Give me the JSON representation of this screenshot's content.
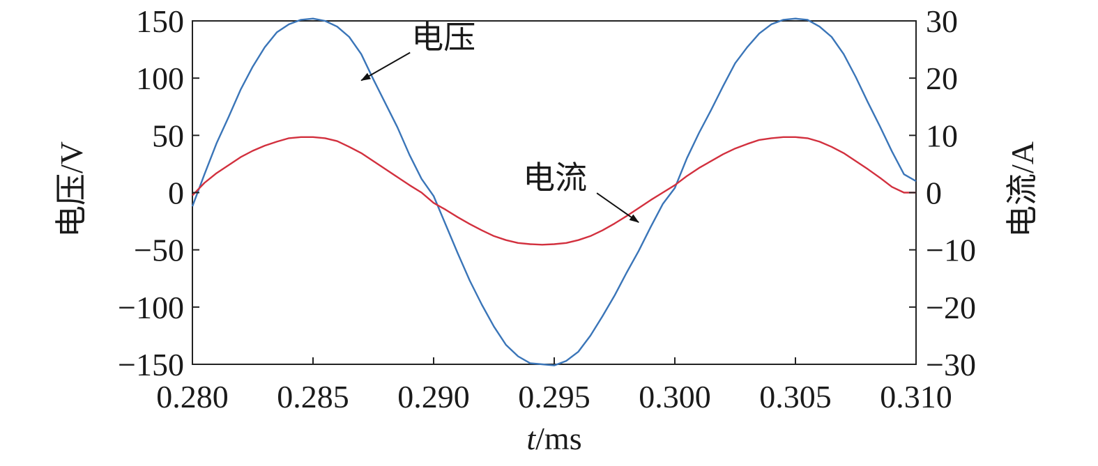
{
  "chart_data": {
    "type": "line",
    "x_axis": {
      "label_italic": "t",
      "label_rest": "/ms",
      "range": [
        0.28,
        0.31
      ],
      "ticks": [
        0.28,
        0.285,
        0.29,
        0.295,
        0.3,
        0.305,
        0.31
      ],
      "tick_labels": [
        "0.280",
        "0.285",
        "0.290",
        "0.295",
        "0.300",
        "0.305",
        "0.310"
      ]
    },
    "y_left": {
      "label": "电压/V",
      "range": [
        -150,
        150
      ],
      "ticks": [
        150,
        100,
        50,
        0,
        -50,
        -100,
        -150
      ],
      "tick_labels": [
        "150",
        "100",
        "50",
        "0",
        "−50",
        "−100",
        "−150"
      ]
    },
    "y_right": {
      "label": "电流/A",
      "range": [
        -30,
        30
      ],
      "ticks": [
        30,
        20,
        10,
        0,
        -10,
        -20,
        -30
      ],
      "tick_labels": [
        "30",
        "20",
        "10",
        "0",
        "−10",
        "−20",
        "−30"
      ]
    },
    "grid": false,
    "series": [
      {
        "name": "电压",
        "axis": "left",
        "color": "#3a75b8",
        "x": [
          0.28,
          0.2805,
          0.281,
          0.2815,
          0.282,
          0.2825,
          0.283,
          0.2835,
          0.284,
          0.2845,
          0.285,
          0.2855,
          0.286,
          0.2865,
          0.287,
          0.2875,
          0.288,
          0.2885,
          0.289,
          0.2895,
          0.29,
          0.2905,
          0.291,
          0.2915,
          0.292,
          0.2925,
          0.293,
          0.2935,
          0.294,
          0.2945,
          0.295,
          0.2955,
          0.296,
          0.2965,
          0.297,
          0.2975,
          0.298,
          0.2985,
          0.299,
          0.2995,
          0.3,
          0.3005,
          0.301,
          0.3015,
          0.302,
          0.3025,
          0.303,
          0.3035,
          0.304,
          0.3045,
          0.305,
          0.3055,
          0.306,
          0.3065,
          0.307,
          0.3075,
          0.308,
          0.3085,
          0.309,
          0.3095,
          0.31
        ],
        "values": [
          -12,
          16,
          43,
          66,
          90,
          110,
          127,
          140,
          147,
          151,
          152,
          150,
          145,
          136,
          121,
          99,
          78,
          57,
          33,
          12,
          -3,
          -28,
          -53,
          -77,
          -98,
          -117,
          -133,
          -143,
          -149,
          -150,
          -151,
          -147,
          -139,
          -125,
          -108,
          -90,
          -70,
          -51,
          -30,
          -10,
          4,
          30,
          52,
          72,
          93,
          113,
          127,
          139,
          147,
          151,
          152,
          151,
          145,
          136,
          121,
          101,
          79,
          58,
          36,
          16,
          10
        ]
      },
      {
        "name": "电流",
        "axis": "right",
        "color": "#d2303e",
        "x": [
          0.28,
          0.2805,
          0.281,
          0.2815,
          0.282,
          0.2825,
          0.283,
          0.2835,
          0.284,
          0.2845,
          0.285,
          0.2855,
          0.286,
          0.2865,
          0.287,
          0.2875,
          0.288,
          0.2885,
          0.289,
          0.2895,
          0.29,
          0.2905,
          0.291,
          0.2915,
          0.292,
          0.2925,
          0.293,
          0.2935,
          0.294,
          0.2945,
          0.295,
          0.2955,
          0.296,
          0.2965,
          0.297,
          0.2975,
          0.298,
          0.2985,
          0.299,
          0.2995,
          0.3,
          0.3005,
          0.301,
          0.3015,
          0.302,
          0.3025,
          0.303,
          0.3035,
          0.304,
          0.3045,
          0.305,
          0.3055,
          0.306,
          0.3065,
          0.307,
          0.3075,
          0.308,
          0.3085,
          0.309,
          0.3095,
          0.31
        ],
        "values": [
          -0.5,
          1.7,
          3.4,
          4.8,
          6.2,
          7.3,
          8.2,
          8.9,
          9.5,
          9.7,
          9.7,
          9.5,
          9.0,
          8.0,
          6.9,
          5.5,
          4.1,
          2.7,
          1.3,
          -0.0,
          -1.8,
          -3.0,
          -4.3,
          -5.5,
          -6.6,
          -7.6,
          -8.3,
          -8.8,
          -9.0,
          -9.1,
          -9.0,
          -8.8,
          -8.3,
          -7.6,
          -6.6,
          -5.4,
          -4.1,
          -2.7,
          -1.3,
          0.0,
          1.3,
          2.9,
          4.3,
          5.5,
          6.7,
          7.7,
          8.5,
          9.2,
          9.5,
          9.7,
          9.7,
          9.5,
          8.9,
          8.0,
          6.9,
          5.5,
          4.1,
          2.6,
          1.0,
          0.0,
          0.0
        ]
      }
    ],
    "annotations": [
      {
        "text": "电压",
        "series": "电压",
        "x": 0.287,
        "y_data": 98
      },
      {
        "text": "电流",
        "series": "电流",
        "x": 0.2985,
        "y_data": -5.2
      }
    ]
  }
}
